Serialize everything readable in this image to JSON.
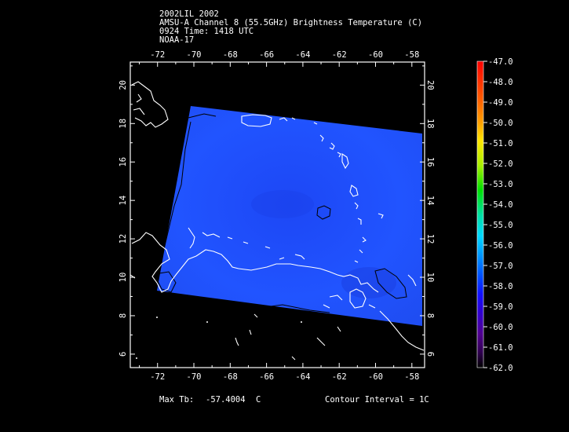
{
  "header": {
    "line1": "2002LIL 2002",
    "line2": "AMSU-A Channel 8 (55.5GHz) Brightness Temperature (C)",
    "line3": "0924 Time: 1418 UTC",
    "line4": "NOAA-17"
  },
  "map": {
    "lon_ticks": [
      "-72",
      "-70",
      "-68",
      "-66",
      "-64",
      "-62",
      "-60",
      "-58"
    ],
    "lat_ticks": [
      "6",
      "8",
      "10",
      "12",
      "14",
      "16",
      "18",
      "20"
    ],
    "lon_range": [
      -73.5,
      -57.3
    ],
    "lat_range": [
      5.3,
      21.2
    ],
    "swath_color": "#1f4cff",
    "contour_color": "#000000",
    "coast_color": "#ffffff"
  },
  "colorbar": {
    "labels": [
      "-47.0",
      "-48.0",
      "-49.0",
      "-50.0",
      "-51.0",
      "-52.0",
      "-53.0",
      "-54.0",
      "-55.0",
      "-56.0",
      "-57.0",
      "-58.0",
      "-59.0",
      "-60.0",
      "-61.0",
      "-62.0"
    ]
  },
  "footer": {
    "max_tb_label": "Max Tb:",
    "max_tb_value": "-57.4004",
    "max_tb_unit": "C",
    "contour_interval": "Contour Interval = 1C"
  }
}
